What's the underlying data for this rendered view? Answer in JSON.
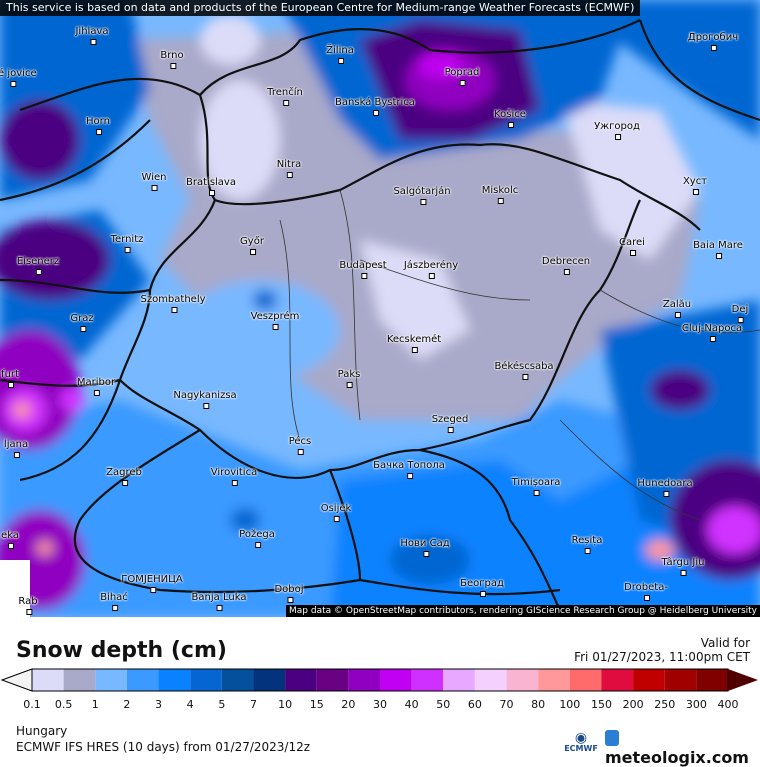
{
  "map": {
    "banner": "This service is based on data and products of the European Centre for Medium-range Weather Forecasts (ECMWF)",
    "attribution": "Map data © OpenStreetMap contributors, rendering GIScience Research Group @ Heidelberg University",
    "cities": [
      "Jihlava",
      "Brno",
      "Žilina",
      "Poprad",
      "Дрогобич",
      "Trenčín",
      "Banská Bystrica",
      "Košice",
      "Ужгород",
      "Horn",
      "Nitra",
      "Wien",
      "Bratislava",
      "Salgótarján",
      "Miskolc",
      "Хуст",
      "Ternitz",
      "Győr",
      "Eisenerz",
      "Carei",
      "Baia Mare",
      "Budapest",
      "Jászberény",
      "Debrecen",
      "Szombathely",
      "Graz",
      "Veszprém",
      "Zalău",
      "Dej",
      "Kecskemét",
      "Cluj-Napoca",
      "Maribor",
      "Paks",
      "Békéscsaba",
      "Nagykanizsa",
      "Szeged",
      "Pécs",
      "Zagreb",
      "Virovitica",
      "Бачка Топола",
      "Timișoara",
      "Hunedoara",
      "Osijek",
      "Požega",
      "Нови Сад",
      "Reșița",
      "Târgu Jiu",
      "ГОМЈЕНИЦА",
      "Banja Luka",
      "Doboj",
      "Београд",
      "Drobeta-",
      "Bihać",
      "Rab",
      "ské jovice",
      "furt",
      "ljana",
      "eka"
    ]
  },
  "header": {
    "title": "Snow depth (cm)",
    "valid_label": "Valid for",
    "valid_time": "Fri 01/27/2023, 11:00pm CET"
  },
  "legend": {
    "labels": [
      "0.1",
      "0.5",
      "1",
      "2",
      "3",
      "4",
      "5",
      "7",
      "10",
      "15",
      "20",
      "30",
      "40",
      "50",
      "60",
      "70",
      "80",
      "100",
      "150",
      "200",
      "250",
      "300",
      "400"
    ],
    "colors": [
      "#dcdcf8",
      "#a9a9c9",
      "#78b8ff",
      "#3a9aff",
      "#0a82ff",
      "#0566d2",
      "#04509c",
      "#04337d",
      "#4b0082",
      "#6a0082",
      "#9000c0",
      "#c000f0",
      "#d030ff",
      "#e8a8ff",
      "#f4d0ff",
      "#f8b4d0",
      "#ff9898",
      "#ff6a6a",
      "#e00c40",
      "#c00000",
      "#a00000",
      "#800000"
    ],
    "under_color": "#f4f4f4",
    "over_color": "#500000"
  },
  "footer": {
    "region": "Hungary",
    "model": "ECMWF IFS HRES (10 days) from  01/27/2023/12z",
    "ecmwf_logo": "ECMWF",
    "brand": "meteologix.com"
  }
}
